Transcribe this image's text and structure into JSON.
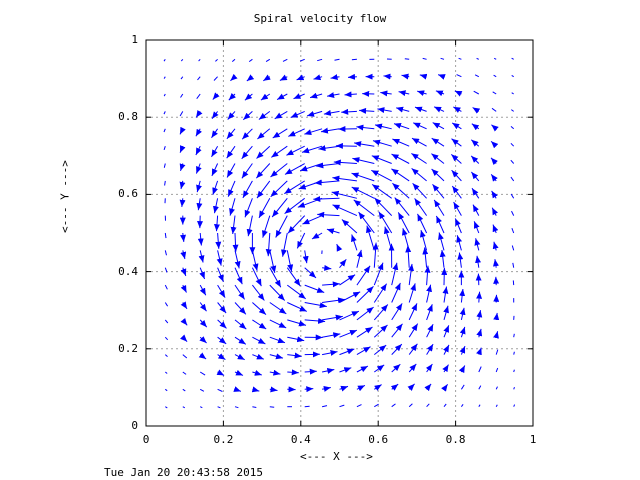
{
  "chart_data": {
    "type": "quiver",
    "title": "Spiral velocity flow",
    "xlabel": "<--- X --->",
    "ylabel": "<--- Y --->",
    "xlim": [
      0,
      1
    ],
    "ylim": [
      0,
      1
    ],
    "xticks": [
      "0",
      "0.2",
      "0.4",
      "0.6",
      "0.8",
      "1"
    ],
    "yticks": [
      "0",
      "0.2",
      "0.4",
      "0.6",
      "0.8",
      "1"
    ],
    "grid": true,
    "grid_points": 21,
    "grid_range": [
      0.05,
      0.95
    ],
    "center": [
      0.47,
      0.45
    ],
    "rotation": "counterclockwise",
    "arrow_color": "#0000ff"
  },
  "timestamp": "Tue Jan 20 20:43:58 2015"
}
